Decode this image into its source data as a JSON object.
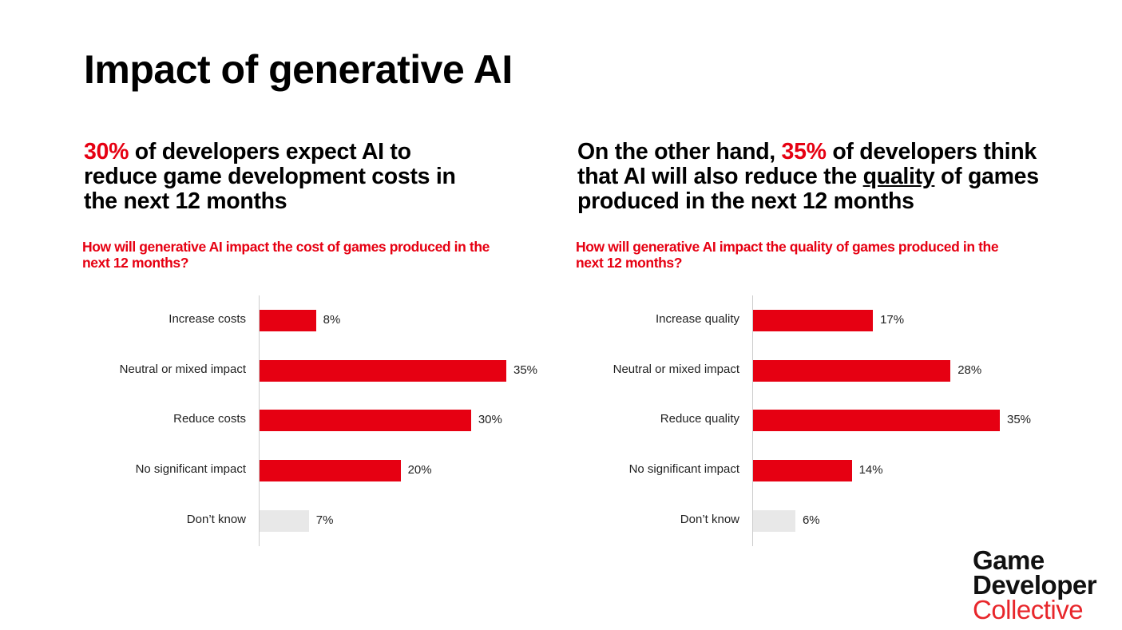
{
  "title": "Impact of generative AI",
  "colors": {
    "accent": "#e60012",
    "muted": "#e8e8e8"
  },
  "left": {
    "headline": {
      "highlight": "30%",
      "text": " of developers expect AI to reduce game development costs in the next 12 months"
    },
    "question": "How will generative AI impact the cost of games produced in the next 12 months?"
  },
  "right": {
    "headline": {
      "pre": "On the other hand, ",
      "highlight": "35%",
      "mid": " of developers think that AI will also reduce the ",
      "underline": "quality",
      "post": " of games produced in the next 12 months"
    },
    "question": "How will generative AI impact the quality of games produced in the next 12 months?"
  },
  "chart_data": [
    {
      "type": "bar",
      "orientation": "horizontal",
      "title": "How will generative AI impact the cost of games produced in the next 12 months?",
      "categories": [
        "Increase costs",
        "Neutral or mixed impact",
        "Reduce costs",
        "No significant impact",
        "Don’t know"
      ],
      "values": [
        8,
        35,
        30,
        20,
        7
      ],
      "labels": [
        "8%",
        "35%",
        "30%",
        "20%",
        "7%"
      ],
      "bar_colors": [
        "#e60012",
        "#e60012",
        "#e60012",
        "#e60012",
        "#e8e8e8"
      ],
      "unit": "%",
      "xlim": [
        0,
        35
      ],
      "grid": false
    },
    {
      "type": "bar",
      "orientation": "horizontal",
      "title": "How will generative AI impact the quality of games produced in the next 12 months?",
      "categories": [
        "Increase quality",
        "Neutral or mixed impact",
        "Reduce quality",
        "No significant impact",
        "Don’t know"
      ],
      "values": [
        17,
        28,
        35,
        14,
        6
      ],
      "labels": [
        "17%",
        "28%",
        "35%",
        "14%",
        "6%"
      ],
      "bar_colors": [
        "#e60012",
        "#e60012",
        "#e60012",
        "#e60012",
        "#e8e8e8"
      ],
      "unit": "%",
      "xlim": [
        0,
        35
      ],
      "grid": false
    }
  ],
  "logo": {
    "line1": "Game",
    "line2": "Developer",
    "line3": "Collective"
  }
}
